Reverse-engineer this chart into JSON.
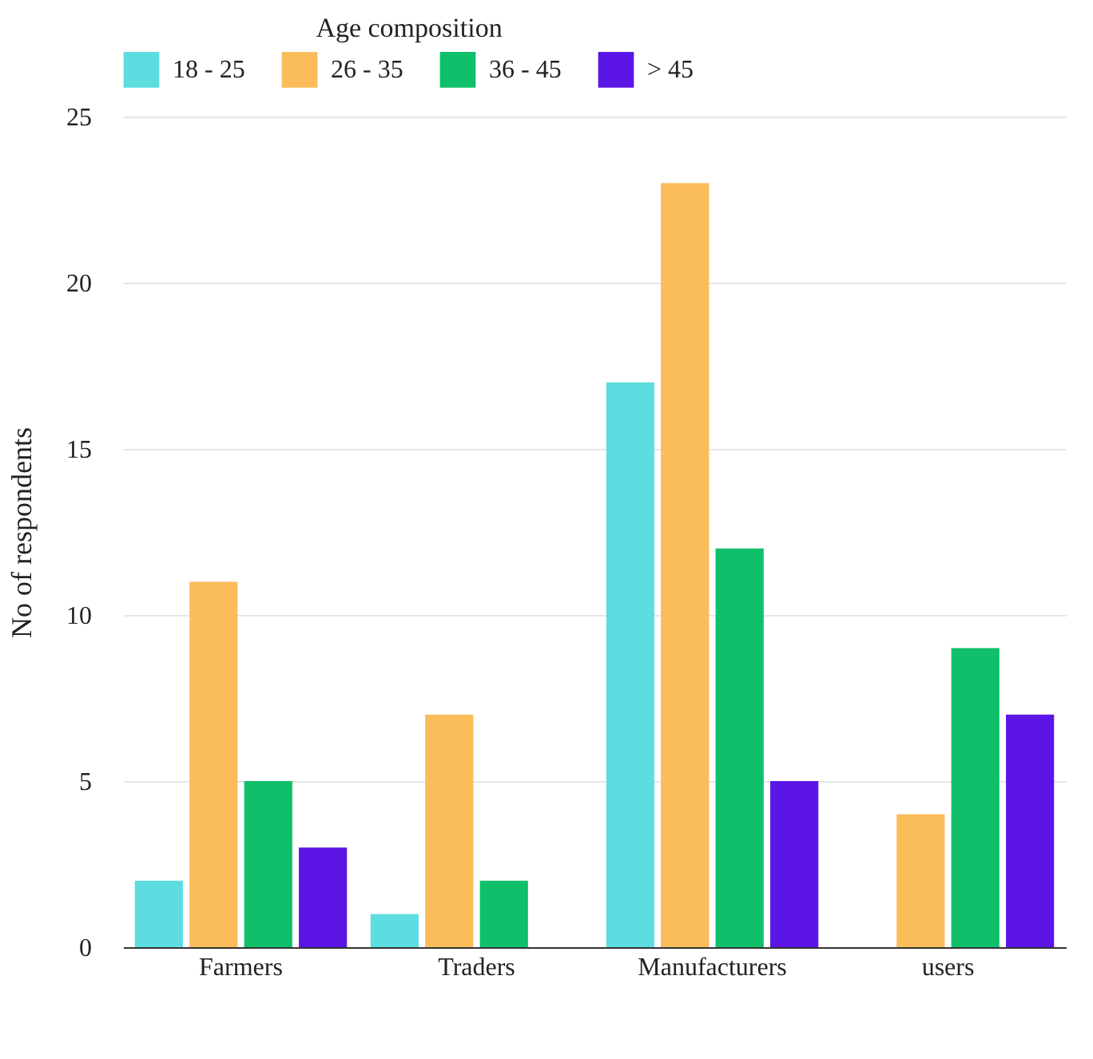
{
  "chart_data": {
    "type": "bar",
    "legend_title": "Age composition",
    "ylabel": "No of respondents",
    "categories": [
      "Farmers",
      "Traders",
      "Manufacturers",
      "users"
    ],
    "series": [
      {
        "name": "18 - 25",
        "color": "#5ddde0",
        "values": [
          2,
          1,
          17,
          0
        ]
      },
      {
        "name": "26 - 35",
        "color": "#fbbc5a",
        "values": [
          11,
          7,
          23,
          4
        ]
      },
      {
        "name": "36 - 45",
        "color": "#0fbf6a",
        "values": [
          5,
          2,
          12,
          9
        ]
      },
      {
        "name": "> 45",
        "color": "#5b16e6",
        "values": [
          3,
          0,
          5,
          7
        ]
      }
    ],
    "ylim": [
      0,
      25
    ],
    "yticks": [
      0,
      5,
      10,
      15,
      20,
      25
    ],
    "grid": "y",
    "legend": "top"
  }
}
